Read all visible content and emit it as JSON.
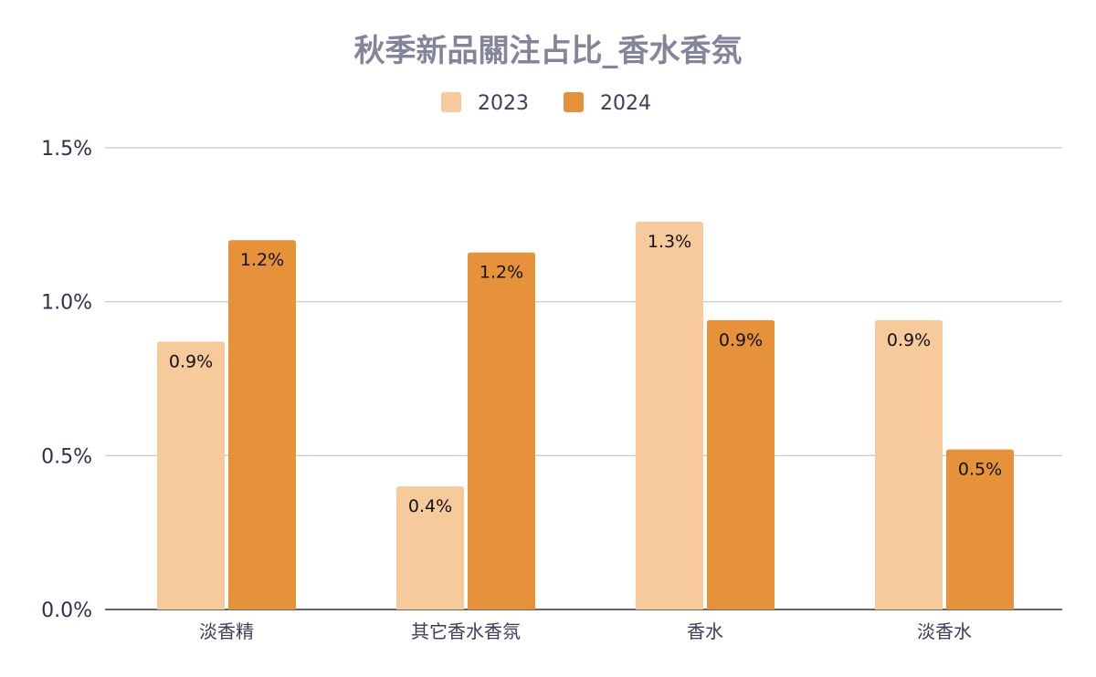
{
  "chart_data": {
    "type": "bar",
    "title": "秋季新品關注占比_香水香氛",
    "xlabel": "",
    "ylabel": "",
    "categories": [
      "淡香精",
      "其它香水香氛",
      "香水",
      "淡香水"
    ],
    "series": [
      {
        "name": "2023",
        "color": "#f7ca9b",
        "values": [
          0.87,
          0.4,
          1.26,
          0.94
        ],
        "labels": [
          "0.9%",
          "0.4%",
          "1.3%",
          "0.9%"
        ]
      },
      {
        "name": "2024",
        "color": "#e5923a",
        "values": [
          1.2,
          1.16,
          0.94,
          0.52
        ],
        "labels": [
          "1.2%",
          "1.2%",
          "0.9%",
          "0.5%"
        ]
      }
    ],
    "ylim": [
      0,
      1.5
    ],
    "yticks": [
      "0.0%",
      "0.5%",
      "1.0%",
      "1.5%"
    ],
    "ytick_values": [
      0,
      0.5,
      1.0,
      1.5
    ],
    "grid": true,
    "legend_position": "top-center"
  }
}
